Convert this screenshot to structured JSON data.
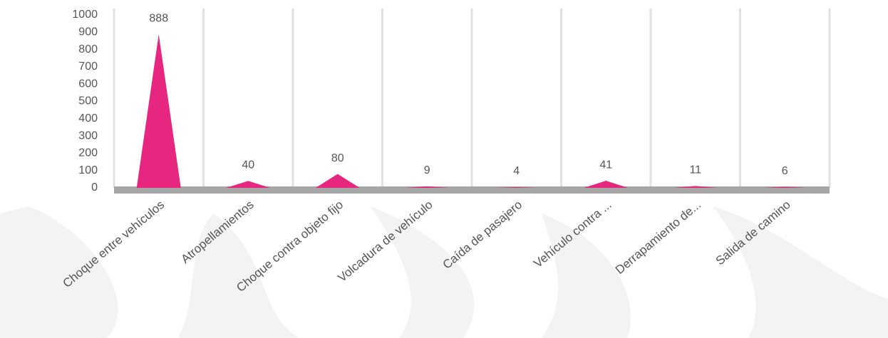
{
  "chart_data": {
    "type": "triangle",
    "categories": [
      "Choque entre vehículos",
      "Atropellamientos",
      "Choque contra objeto fijo",
      "Volcadura de vehículo",
      "Caída de pasajero",
      "Vehículo contra ...",
      "Derrapamiento de...",
      "Salida de camino"
    ],
    "values": [
      888,
      40,
      80,
      9,
      4,
      41,
      11,
      6
    ],
    "color": "#e6267f",
    "ylim": [
      0,
      1000
    ],
    "yticks": [
      0,
      100,
      200,
      300,
      400,
      500,
      600,
      700,
      800,
      900,
      1000
    ],
    "grid": false
  }
}
